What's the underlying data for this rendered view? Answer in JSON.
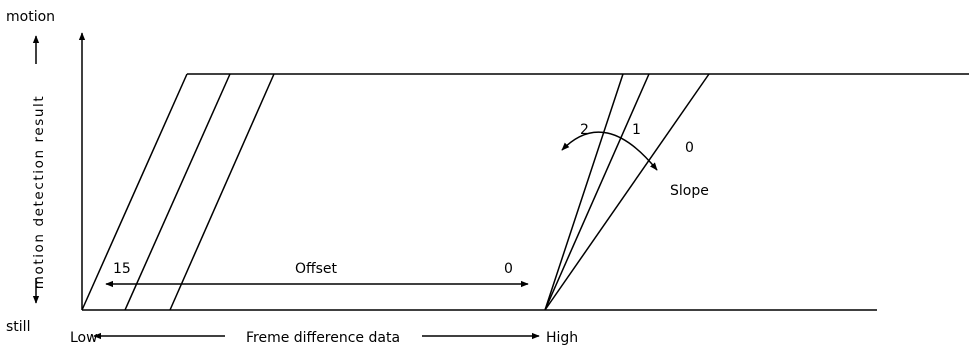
{
  "labels": {
    "motion": "motion",
    "still": "still",
    "y_axis": "motion detection result",
    "low": "Low",
    "x_axis": "Freme difference data",
    "high": "High",
    "offset": "Offset",
    "offset_max": "15",
    "offset_min": "0",
    "slope": "Slope",
    "slope_2": "2",
    "slope_1": "1",
    "slope_0": "0"
  },
  "colors": {
    "line": "#000000",
    "background": "#ffffff"
  }
}
